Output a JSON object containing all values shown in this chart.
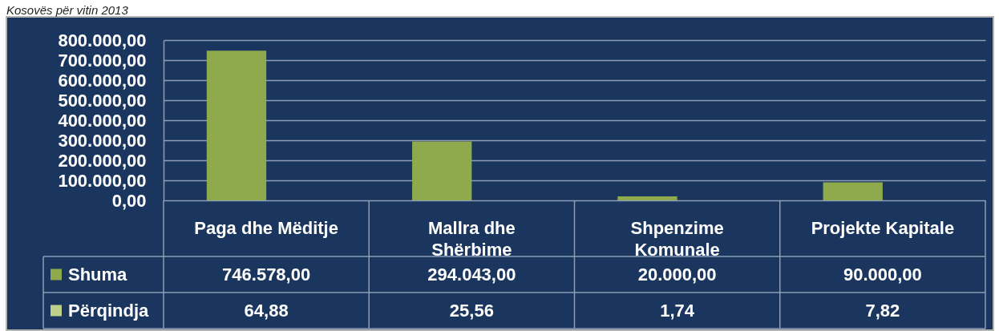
{
  "chart_data": {
    "type": "bar",
    "title": "Kosovës për vitin 2013",
    "categories": [
      "Paga dhe Mëditje",
      "Mallra dhe Shërbime",
      "Shpenzime Komunale",
      "Projekte Kapitale"
    ],
    "series": [
      {
        "name": "Shuma",
        "color": "#8faa4c",
        "values": [
          746578,
          294043,
          20000,
          90000
        ],
        "value_labels": [
          "746.578,00",
          "294.043,00",
          "20.000,00",
          "90.000,00"
        ]
      },
      {
        "name": "Përqindja",
        "color": "#bcd08a",
        "values": [
          64.88,
          25.56,
          1.74,
          7.82
        ],
        "value_labels": [
          "64,88",
          "25,56",
          "1,74",
          "7,82"
        ]
      }
    ],
    "ylim": [
      0,
      800000
    ],
    "yticks": [
      {
        "value": 0,
        "label": "0,00"
      },
      {
        "value": 100000,
        "label": "100.000,00"
      },
      {
        "value": 200000,
        "label": "200.000,00"
      },
      {
        "value": 300000,
        "label": "300.000,00"
      },
      {
        "value": 400000,
        "label": "400.000,00"
      },
      {
        "value": 500000,
        "label": "500.000,00"
      },
      {
        "value": 600000,
        "label": "600.000,00"
      },
      {
        "value": 700000,
        "label": "700.000,00"
      },
      {
        "value": 800000,
        "label": "800.000,00"
      }
    ],
    "grid": "y",
    "legend": "bottom"
  }
}
